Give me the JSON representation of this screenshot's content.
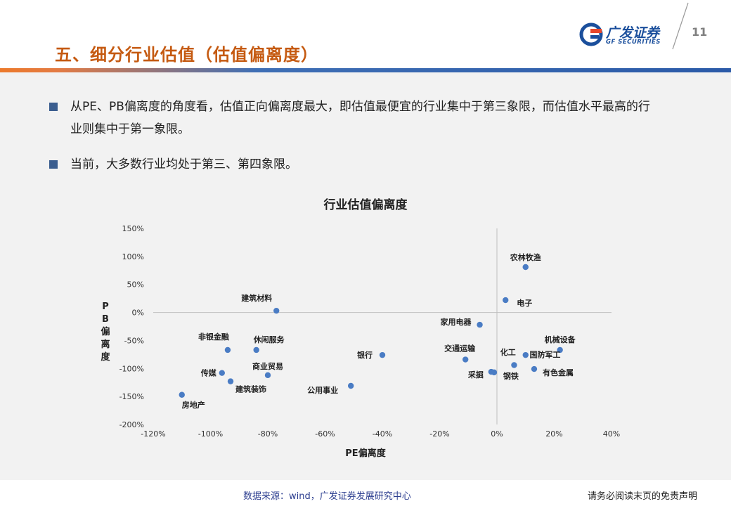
{
  "header": {
    "title": "五、细分行业估值（估值偏离度）",
    "logo_cn": "广发证券",
    "logo_en": "GF SECURITIES",
    "page_number": "11"
  },
  "bullets": [
    "从PE、PB偏离度的角度看，估值正向偏离度最大，即估值最便宜的行业集中于第三象限，而估值水平最高的行业则集中于第一象限。",
    "当前，大多数行业均处于第三、第四象限。"
  ],
  "chart_data": {
    "type": "scatter",
    "title": "行业估值偏离度",
    "xlabel": "PE偏离度",
    "ylabel": "PB偏离度",
    "xlim": [
      -1.2,
      0.4
    ],
    "ylim": [
      -2.0,
      1.5
    ],
    "x_ticks": [
      "-120%",
      "-100%",
      "-80%",
      "-60%",
      "-40%",
      "-20%",
      "0%",
      "20%",
      "40%"
    ],
    "y_ticks": [
      "150%",
      "100%",
      "50%",
      "0%",
      "-50%",
      "-100%",
      "-150%",
      "-200%"
    ],
    "grid": false,
    "points": [
      {
        "label": "农林牧渔",
        "x": 0.1,
        "y": 0.81
      },
      {
        "label": "电子",
        "x": 0.03,
        "y": 0.22
      },
      {
        "label": "建筑材料",
        "x": -0.77,
        "y": 0.03
      },
      {
        "label": "家用电器",
        "x": -0.06,
        "y": -0.22
      },
      {
        "label": "机械设备",
        "x": 0.22,
        "y": -0.67
      },
      {
        "label": "非银金融",
        "x": -0.94,
        "y": -0.67
      },
      {
        "label": "休闲服务",
        "x": -0.84,
        "y": -0.67
      },
      {
        "label": "银行",
        "x": -0.4,
        "y": -0.76
      },
      {
        "label": "交通运输",
        "x": -0.11,
        "y": -0.84
      },
      {
        "label": "化工",
        "x": 0.1,
        "y": -0.76
      },
      {
        "label": "国防军工",
        "x": 0.06,
        "y": -0.94
      },
      {
        "label": "商业贸易",
        "x": -0.8,
        "y": -1.12
      },
      {
        "label": "传媒",
        "x": -0.96,
        "y": -1.08
      },
      {
        "label": "建筑装饰",
        "x": -0.93,
        "y": -1.23
      },
      {
        "label": "采掘",
        "x": -0.02,
        "y": -1.06
      },
      {
        "label": "钢铁",
        "x": -0.01,
        "y": -1.07
      },
      {
        "label": "有色金属",
        "x": 0.13,
        "y": -1.01
      },
      {
        "label": "公用事业",
        "x": -0.51,
        "y": -1.31
      },
      {
        "label": "房地产",
        "x": -1.1,
        "y": -1.47
      }
    ],
    "marker_color": "#4a7cc4"
  },
  "footer": {
    "source": "数据来源：wind，广发证券发展研究中心",
    "disclaimer": "请务必阅读末页的免责声明"
  }
}
